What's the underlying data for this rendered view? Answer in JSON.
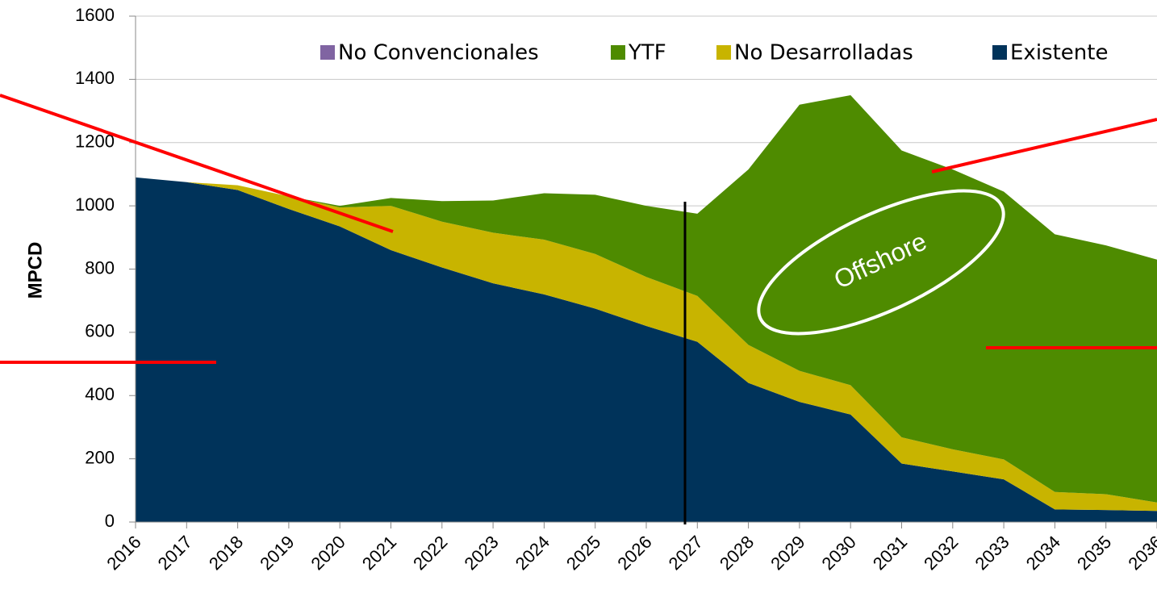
{
  "chart_data": {
    "type": "stacked_area",
    "y_label": "MPCD",
    "categories": [
      "2016",
      "2017",
      "2018",
      "2019",
      "2020",
      "2021",
      "2022",
      "2023",
      "2024",
      "2025",
      "2026",
      "2027",
      "2028",
      "2029",
      "2030",
      "2031",
      "2032",
      "2033",
      "2034",
      "2035",
      "2036"
    ],
    "series": [
      {
        "name": "No Convencionales",
        "color": "#8064a2",
        "values": [
          0,
          0,
          0,
          0,
          0,
          0,
          0,
          0,
          0,
          0,
          0,
          0,
          0,
          0,
          0,
          0,
          0,
          0,
          0,
          0,
          0
        ]
      },
      {
        "name": "YTF",
        "color": "#4e8b00",
        "values": [
          0,
          0,
          0,
          0,
          5,
          25,
          65,
          102,
          147,
          187,
          225,
          260,
          555,
          842,
          917,
          907,
          885,
          847,
          815,
          787,
          768
        ]
      },
      {
        "name": "No Desarrolladas",
        "color": "#c8b400",
        "values": [
          0,
          0,
          15,
          40,
          60,
          140,
          145,
          160,
          173,
          173,
          155,
          145,
          120,
          98,
          93,
          83,
          70,
          63,
          55,
          50,
          27
        ]
      },
      {
        "name": "Existente",
        "color": "#00335a",
        "values": [
          1090,
          1075,
          1050,
          990,
          935,
          860,
          805,
          755,
          720,
          675,
          620,
          570,
          440,
          380,
          340,
          185,
          160,
          135,
          40,
          38,
          35
        ]
      }
    ],
    "ylim": [
      0,
      1600
    ],
    "yticks": [
      0,
      200,
      400,
      600,
      800,
      1000,
      1200,
      1400,
      1600
    ],
    "grid": true,
    "annotation": "Offshore"
  }
}
